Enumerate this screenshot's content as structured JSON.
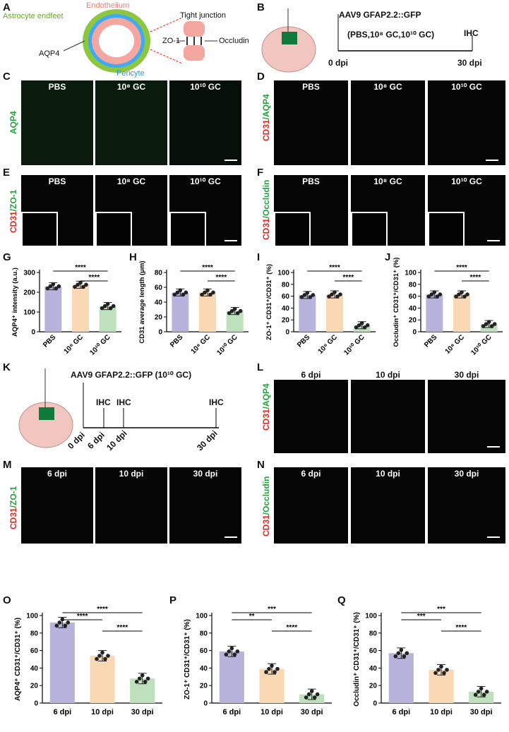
{
  "panels": {
    "A": {
      "letter": "A",
      "labels": {
        "endothelium": "Endothelium",
        "endfeet": "Astrocyte endfeet",
        "tight": "Tight junction",
        "zo1": "ZO-1",
        "occludin": "Occludin",
        "aqp4": "AQP4",
        "pericyte": "Pericyte"
      }
    },
    "B": {
      "letter": "B",
      "vector": "AAV9 GFAP2.2::GFP",
      "groups": "(PBS,10⁸ GC,10¹⁰ GC)",
      "ihc": "IHC",
      "t0": "0 dpi",
      "t1": "30 dpi"
    },
    "C": {
      "letter": "C",
      "cols": [
        "PBS",
        "10⁸ GC",
        "10¹⁰ GC"
      ],
      "stain": "AQP4"
    },
    "D": {
      "letter": "D",
      "cols": [
        "PBS",
        "10⁸ GC",
        "10¹⁰ GC"
      ],
      "stain_red": "CD31",
      "stain_green": "/AQP4"
    },
    "E": {
      "letter": "E",
      "cols": [
        "PBS",
        "10⁸ GC",
        "10¹⁰ GC"
      ],
      "stain_red": "CD31",
      "stain_green": "/ZO-1"
    },
    "F": {
      "letter": "F",
      "cols": [
        "PBS",
        "10⁸ GC",
        "10¹⁰ GC"
      ],
      "stain_red": "CD31",
      "stain_green": "/Occludin"
    },
    "K": {
      "letter": "K",
      "vector": "AAV9 GFAP2.2::GFP (10¹⁰ GC)",
      "ihc": "IHC",
      "times": [
        "0 dpi",
        "6 dpi",
        "10 dpi",
        "30 dpi"
      ]
    },
    "L": {
      "letter": "L",
      "cols": [
        "6 dpi",
        "10 dpi",
        "30 dpi"
      ],
      "stain_red": "CD31",
      "stain_green": "/AQP4"
    },
    "M": {
      "letter": "M",
      "cols": [
        "6 dpi",
        "10 dpi",
        "30 dpi"
      ],
      "stain_red": "CD31",
      "stain_green": "/ZO-1"
    },
    "N": {
      "letter": "N",
      "cols": [
        "6 dpi",
        "10 dpi",
        "30 dpi"
      ],
      "stain_red": "CD31",
      "stain_green": "/Occludin"
    }
  },
  "chart_data": [
    {
      "panel": "G",
      "type": "bar",
      "categories": [
        "PBS",
        "10⁸ GC",
        "10¹⁰ GC"
      ],
      "values": [
        230,
        238,
        130
      ],
      "ylabel": "AQP4⁺ intensity (a.u.)",
      "ylim": [
        0,
        300
      ],
      "yticks": [
        0,
        100,
        200,
        300
      ],
      "colors": [
        "#b7b3dc",
        "#fbd8b4",
        "#bfe0bd"
      ],
      "sig": [
        "****",
        "****"
      ]
    },
    {
      "panel": "H",
      "type": "bar",
      "categories": [
        "PBS",
        "10⁸ GC",
        "10¹⁰ GC"
      ],
      "values": [
        53,
        53,
        28
      ],
      "ylabel": "CD31 average length (μm)",
      "ylim": [
        0,
        80
      ],
      "yticks": [
        0,
        20,
        40,
        60,
        80
      ],
      "colors": [
        "#b7b3dc",
        "#fbd8b4",
        "#bfe0bd"
      ],
      "sig": [
        "****",
        "****"
      ]
    },
    {
      "panel": "I",
      "type": "bar",
      "categories": [
        "PBS",
        "10⁸ GC",
        "10¹⁰ GC"
      ],
      "values": [
        62,
        63,
        11
      ],
      "ylabel": "ZO-1⁺ CD31⁺/CD31⁺ (%)",
      "ylim": [
        0,
        100
      ],
      "yticks": [
        0,
        20,
        40,
        60,
        80,
        100
      ],
      "colors": [
        "#b7b3dc",
        "#fbd8b4",
        "#bfe0bd"
      ],
      "sig": [
        "****",
        "****"
      ]
    },
    {
      "panel": "J",
      "type": "bar",
      "categories": [
        "PBS",
        "10⁸ GC",
        "10¹⁰ GC"
      ],
      "values": [
        63,
        63,
        13
      ],
      "ylabel": "Occludin⁺ CD31⁺/CD31⁺ (%)",
      "ylim": [
        0,
        100
      ],
      "yticks": [
        0,
        20,
        40,
        60,
        80,
        100
      ],
      "colors": [
        "#b7b3dc",
        "#fbd8b4",
        "#bfe0bd"
      ],
      "sig": [
        "****",
        "****"
      ]
    },
    {
      "panel": "O",
      "type": "bar",
      "categories": [
        "6 dpi",
        "10 dpi",
        "30 dpi"
      ],
      "values": [
        92,
        54,
        28
      ],
      "ylabel": "AQP4⁺ CD31⁺/CD31⁺ (%)",
      "ylim": [
        0,
        100
      ],
      "yticks": [
        0,
        20,
        40,
        60,
        80,
        100
      ],
      "colors": [
        "#b7b3dc",
        "#fbd8b4",
        "#bfe0bd"
      ],
      "sig": [
        "****",
        "****",
        "****"
      ]
    },
    {
      "panel": "P",
      "type": "bar",
      "categories": [
        "6 dpi",
        "10 dpi",
        "30 dpi"
      ],
      "values": [
        59,
        39,
        10
      ],
      "ylabel": "ZO-1⁺ CD31⁺/CD31⁺ (%)",
      "ylim": [
        0,
        100
      ],
      "yticks": [
        0,
        20,
        40,
        60,
        80,
        100
      ],
      "colors": [
        "#b7b3dc",
        "#fbd8b4",
        "#bfe0bd"
      ],
      "sig": [
        "**",
        "****",
        "***"
      ]
    },
    {
      "panel": "Q",
      "type": "bar",
      "categories": [
        "6 dpi",
        "10 dpi",
        "30 dpi"
      ],
      "values": [
        57,
        38,
        13
      ],
      "ylabel": "Occludin⁺ CD31⁺/CD31⁺ (%)",
      "ylim": [
        0,
        100
      ],
      "yticks": [
        0,
        20,
        40,
        60,
        80,
        100
      ],
      "colors": [
        "#b7b3dc",
        "#fbd8b4",
        "#bfe0bd"
      ],
      "sig": [
        "***",
        "****",
        "***"
      ]
    }
  ]
}
